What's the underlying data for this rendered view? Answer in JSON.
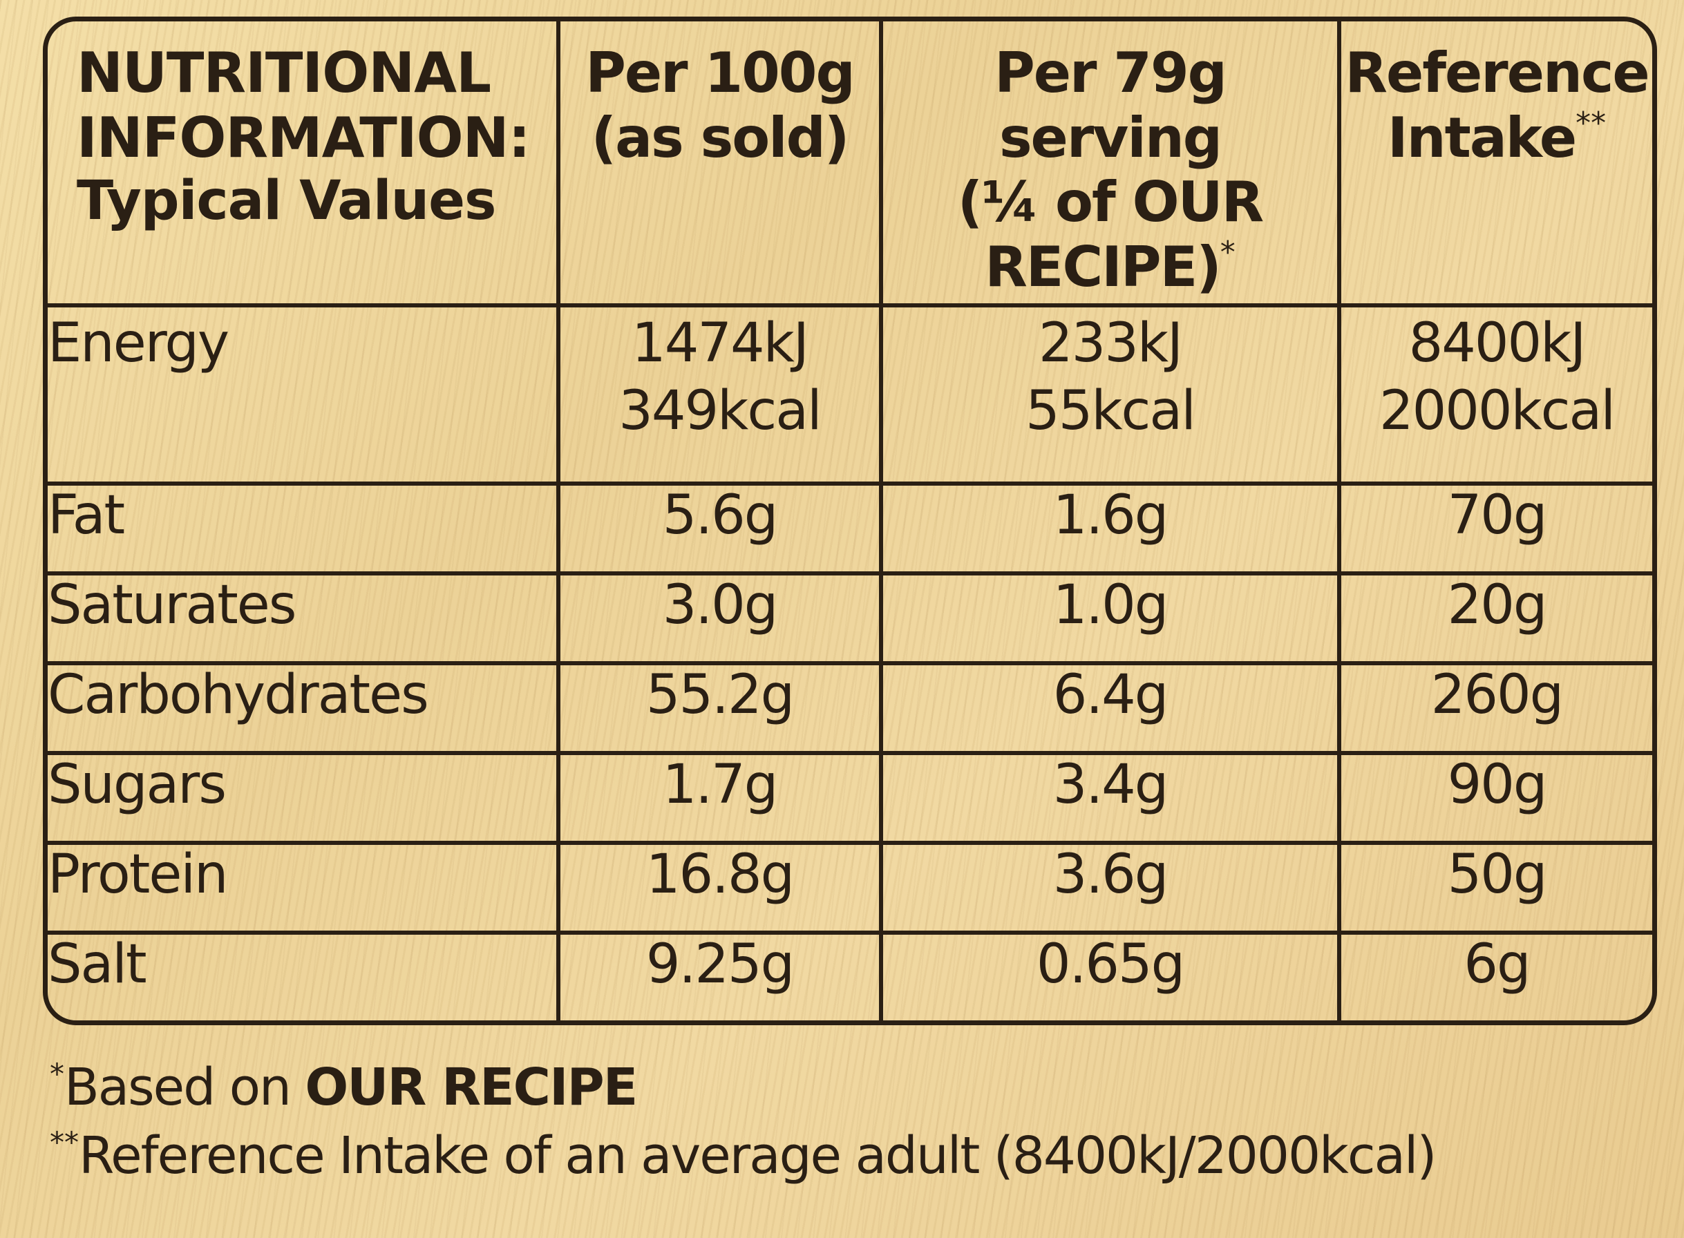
{
  "header": {
    "lead_line1": "NUTRITIONAL",
    "lead_line2": "INFORMATION:",
    "lead_line3": "Typical Values",
    "col1_line1": "Per 100g",
    "col1_line2": "(as sold)",
    "col2_line1": "Per 79g serving",
    "col2_line2": "(¼ of OUR",
    "col2_line3": "RECIPE)",
    "col2_mark": "*",
    "col3_line1": "Reference",
    "col3_line2": "Intake",
    "col3_mark": "**"
  },
  "energy": {
    "label": "Energy",
    "per100_kj": "1474kJ",
    "per100_kcal": "349kcal",
    "serving_kj": "233kJ",
    "serving_kcal": "55kcal",
    "ri_kj": "8400kJ",
    "ri_kcal": "2000kcal"
  },
  "rows": [
    {
      "label": "Fat",
      "per100": "5.6g",
      "serving": "1.6g",
      "ri": "70g"
    },
    {
      "label": "Saturates",
      "per100": "3.0g",
      "serving": "1.0g",
      "ri": "20g"
    },
    {
      "label": "Carbohydrates",
      "per100": "55.2g",
      "serving": "6.4g",
      "ri": "260g"
    },
    {
      "label": "Sugars",
      "per100": "1.7g",
      "serving": "3.4g",
      "ri": "90g"
    },
    {
      "label": "Protein",
      "per100": "16.8g",
      "serving": "3.6g",
      "ri": "50g"
    },
    {
      "label": "Salt",
      "per100": "9.25g",
      "serving": "0.65g",
      "ri": "6g"
    }
  ],
  "footnotes": {
    "note1_mark": "*",
    "note1_text": "Based on ",
    "note1_bold": "OUR RECIPE",
    "note2_mark": "**",
    "note2_text": "Reference Intake of an average adult (8400kJ/2000kcal)"
  },
  "colors": {
    "ink": "#2a1f14",
    "background": "#f1d9a2"
  }
}
